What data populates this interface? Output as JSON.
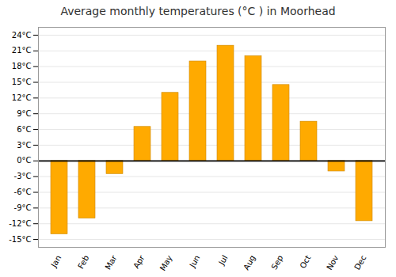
{
  "chart_data": {
    "type": "bar",
    "title": "Average monthly temperatures (°C ) in Moorhead",
    "categories": [
      "Jan",
      "Feb",
      "Mar",
      "Apr",
      "May",
      "Jun",
      "Jul",
      "Aug",
      "Sep",
      "Oct",
      "Nov",
      "Dec"
    ],
    "values": [
      -14,
      -11,
      -2.5,
      6.5,
      13,
      19,
      22,
      20,
      14.5,
      7.5,
      -2,
      -11.5
    ],
    "color": "#FFAA00",
    "ylim": [
      -16.5,
      25.5
    ],
    "yticks": [
      {
        "value": -15,
        "label": "-15°C"
      },
      {
        "value": -12,
        "label": "-12°C"
      },
      {
        "value": -9,
        "label": "-9°C"
      },
      {
        "value": -6,
        "label": "-6°C"
      },
      {
        "value": -3,
        "label": "-3°C"
      },
      {
        "value": 0,
        "label": "0°C"
      },
      {
        "value": 3,
        "label": "3°C"
      },
      {
        "value": 6,
        "label": "6°C"
      },
      {
        "value": 9,
        "label": "9°C"
      },
      {
        "value": 12,
        "label": "12°C"
      },
      {
        "value": 15,
        "label": "15°C"
      },
      {
        "value": 18,
        "label": "18°C"
      },
      {
        "value": 21,
        "label": "21°C"
      },
      {
        "value": 24,
        "label": "24°C"
      }
    ],
    "grid": true
  }
}
